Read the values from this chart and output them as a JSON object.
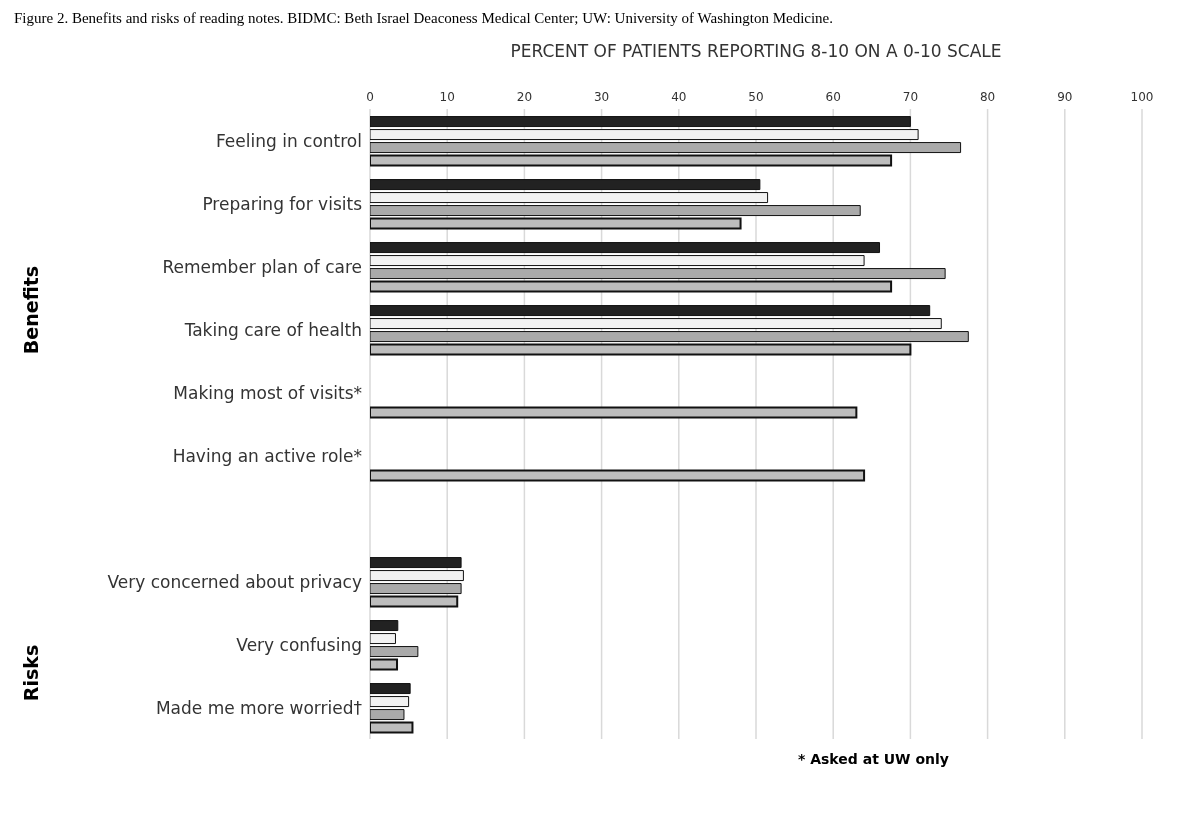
{
  "chart_data": {
    "type": "bar",
    "orientation": "horizontal",
    "title": "Figure 2. Benefits and risks of reading notes. BIDMC: Beth Israel Deaconess Medical Center; UW: University of Washington Medicine.",
    "xlabel": "PERCENT OF PATIENTS REPORTING 8-10 ON A 0-10 SCALE",
    "categories": [
      "Feeling in control",
      "Preparing for visits",
      "Remember plan of care",
      "Taking care of health",
      "Making most of visits*",
      "Having an active role*",
      null,
      "Very concerned about privacy",
      "Very confusing",
      "Made me more worried†"
    ],
    "series": [
      {
        "color": "#222222",
        "values": [
          70,
          50.5,
          66,
          72.5,
          null,
          null,
          null,
          11.8,
          3.6,
          5.2
        ]
      },
      {
        "color": "#f2f2f2",
        "values": [
          71,
          51.5,
          64,
          74,
          null,
          null,
          null,
          12.1,
          3.3,
          5.0
        ]
      },
      {
        "color": "#aaaaaa",
        "values": [
          76.5,
          63.5,
          74.5,
          77.5,
          null,
          null,
          null,
          11.8,
          6.2,
          4.4
        ]
      },
      {
        "color": "#bdbdbd",
        "values": [
          67.5,
          48,
          67.5,
          70,
          63,
          64,
          null,
          11.3,
          3.5,
          5.5
        ]
      }
    ],
    "xlim": [
      0,
      100
    ],
    "xticks": [
      0,
      10,
      20,
      30,
      40,
      50,
      60,
      70,
      80,
      90,
      100
    ],
    "grid": "x",
    "legend": false,
    "annotations": [
      "Benefits",
      "Risks",
      "* Asked at UW only"
    ]
  }
}
